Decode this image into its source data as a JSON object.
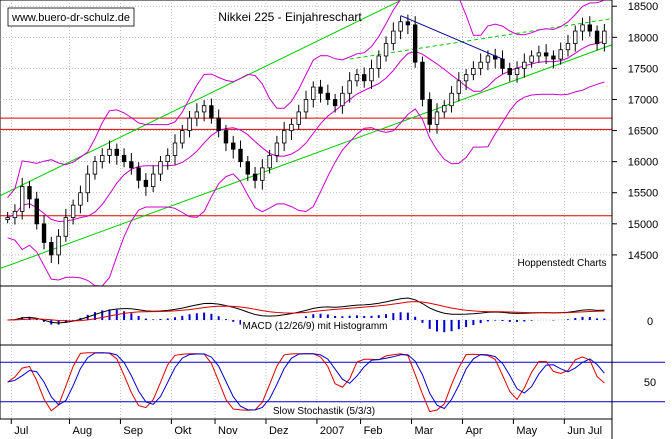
{
  "chart_data": [
    {
      "type": "candlestick",
      "title": "Nikkei 225 - Einjahreschart",
      "watermark": "www.buero-dr-schulz.de",
      "source": "Hoppenstedt Charts",
      "ylim": [
        14000,
        18600
      ],
      "yticks": [
        14500,
        15000,
        15500,
        16000,
        16500,
        17000,
        17500,
        18000,
        18500
      ],
      "x_month_labels": [
        "Jul",
        "Aug",
        "Sep",
        "Okt",
        "Nov",
        "Dez",
        "2007",
        "Feb",
        "Mar",
        "Apr",
        "May",
        "Jun",
        "Jul"
      ],
      "series_close": [
        {
          "name": "Jun",
          "values": [
            15100
          ]
        },
        {
          "name": "Jul",
          "values": [
            15200,
            15600,
            15400,
            15000,
            14700,
            14500,
            14800,
            15100
          ]
        },
        {
          "name": "Aug",
          "values": [
            15300,
            15500,
            15800,
            16000,
            16100,
            16200,
            16100
          ]
        },
        {
          "name": "Sep",
          "values": [
            16000,
            15900,
            15700,
            15600,
            15800,
            16000,
            16100
          ]
        },
        {
          "name": "Okt",
          "values": [
            16300,
            16500,
            16700,
            16800,
            16900,
            16700
          ]
        },
        {
          "name": "Nov",
          "values": [
            16500,
            16300,
            16200,
            16000,
            15800,
            15700,
            15900
          ]
        },
        {
          "name": "Dez",
          "values": [
            16100,
            16300,
            16500,
            16600,
            16800,
            17000,
            17200
          ]
        },
        {
          "name": "Jan",
          "values": [
            17100,
            17000,
            16900,
            17100,
            17300,
            17400
          ]
        },
        {
          "name": "Feb",
          "values": [
            17300,
            17500,
            17700,
            17900,
            18100,
            18250,
            18200
          ]
        },
        {
          "name": "Mar",
          "values": [
            17600,
            17000,
            16600,
            16800,
            16900,
            17100,
            17300
          ]
        },
        {
          "name": "Apr",
          "values": [
            17400,
            17500,
            17600,
            17700,
            17650,
            17500,
            17400
          ]
        },
        {
          "name": "May",
          "values": [
            17500,
            17600,
            17700,
            17750,
            17700,
            17650,
            17800
          ]
        },
        {
          "name": "Jun",
          "values": [
            17900,
            18100,
            18200,
            18100,
            17900,
            18100
          ]
        }
      ],
      "horizontal_lines": [
        {
          "value": 16700,
          "color": "#dd0000"
        },
        {
          "value": 16520,
          "color": "#dd0000"
        },
        {
          "value": 15130,
          "color": "#dd0000"
        }
      ],
      "overlays": [
        "Trendkanal (grün)",
        "Bollinger-Bänder (magenta)",
        "Abwärtstrendlinie (blau)"
      ]
    },
    {
      "type": "line",
      "label": "MACD (12/26/9) mit Histogramm",
      "yticks": [
        0
      ],
      "series": [
        {
          "color": "#000000"
        },
        {
          "color": "#dd0000"
        },
        {
          "color": "#0000cc"
        }
      ]
    },
    {
      "type": "line",
      "label": "Slow Stochastik (5/3/3)",
      "yticks": [
        50
      ],
      "reference_lines": [
        20,
        80
      ],
      "series": [
        {
          "color": "#dd0000"
        },
        {
          "color": "#0000cc"
        }
      ]
    }
  ],
  "colors": {
    "grid": "#999999",
    "trend_channel": "#00cc00",
    "bollinger": "#cc00cc",
    "downtrend": "#000099",
    "support": "#dd0000"
  }
}
